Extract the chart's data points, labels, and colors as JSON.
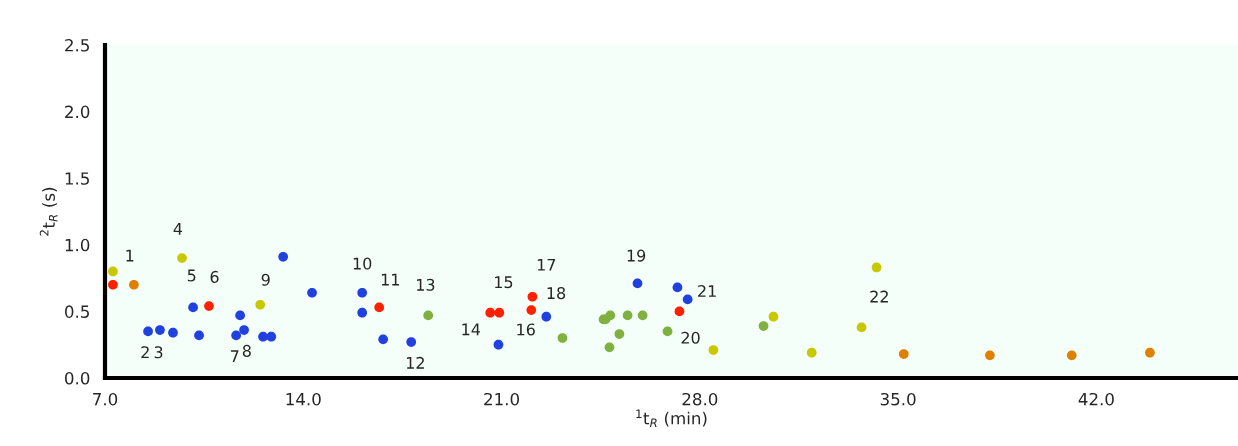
{
  "chart_data": {
    "type": "scatter",
    "xlabel": "$^{1}$t$_{R}$ (min)",
    "ylabel": "$^{2}$t$_{R}$ (s)",
    "xlim": [
      7,
      47
    ],
    "ylim": [
      0,
      2.5
    ],
    "xticks": [
      {
        "value": 7,
        "label": "7.0"
      },
      {
        "value": 14,
        "label": "14.0"
      },
      {
        "value": 21,
        "label": "21.0"
      },
      {
        "value": 28,
        "label": "28.0"
      },
      {
        "value": 35,
        "label": "35.0"
      },
      {
        "value": 42,
        "label": "42.0"
      }
    ],
    "yticks": [
      {
        "value": 0,
        "label": "0.0"
      },
      {
        "value": 0.5,
        "label": "0.5"
      },
      {
        "value": 1,
        "label": "1.0"
      },
      {
        "value": 1.5,
        "label": "1.5"
      },
      {
        "value": 2,
        "label": "2.0"
      },
      {
        "value": 2.5,
        "label": "2.5"
      }
    ],
    "grid": false,
    "legend": false,
    "marker": "circle",
    "series": [
      {
        "color": "#ff2000",
        "x": [
          7.28,
          10.67,
          16.68,
          20.6,
          20.92,
          22.09,
          22.05,
          27.28
        ],
        "values": [
          0.7,
          0.54,
          0.53,
          0.49,
          0.49,
          0.61,
          0.51,
          0.5
        ]
      },
      {
        "color": "#c8c800",
        "x": [
          7.28,
          9.72,
          12.48,
          28.48,
          30.6,
          31.95,
          33.71,
          34.24
        ],
        "values": [
          0.8,
          0.9,
          0.55,
          0.21,
          0.46,
          0.19,
          0.38,
          0.83
        ]
      },
      {
        "color": "#e08000",
        "x": [
          8.02,
          35.2,
          38.24,
          41.13,
          43.89
        ],
        "values": [
          0.7,
          0.18,
          0.17,
          0.17,
          0.19
        ]
      },
      {
        "color": "#80b040",
        "x": [
          18.41,
          23.15,
          24.6,
          24.67,
          24.84,
          24.81,
          25.16,
          25.45,
          25.98,
          26.86,
          30.25
        ],
        "values": [
          0.47,
          0.3,
          0.44,
          0.44,
          0.47,
          0.23,
          0.33,
          0.47,
          0.47,
          0.35,
          0.39
        ]
      },
      {
        "color": "#2040e0",
        "x": [
          8.52,
          8.94,
          9.4,
          10.11,
          10.32,
          11.63,
          11.77,
          11.91,
          12.58,
          12.87,
          13.29,
          14.31,
          16.08,
          16.08,
          16.82,
          17.81,
          20.89,
          22.58,
          25.8,
          27.21,
          27.57
        ],
        "values": [
          0.35,
          0.36,
          0.34,
          0.53,
          0.32,
          0.32,
          0.47,
          0.36,
          0.31,
          0.31,
          0.91,
          0.64,
          0.49,
          0.64,
          0.29,
          0.27,
          0.25,
          0.46,
          0.71,
          0.68,
          0.59
        ]
      }
    ],
    "annotations": [
      {
        "text": "1",
        "x": 8.02,
        "y": 0.7
      },
      {
        "text": "2",
        "x": 8.52,
        "y": 0.35
      },
      {
        "text": "3",
        "x": 8.94,
        "y": 0.36
      },
      {
        "text": "4",
        "x": 9.72,
        "y": 0.9
      },
      {
        "text": "5",
        "x": 10.11,
        "y": 0.53
      },
      {
        "text": "6",
        "x": 10.67,
        "y": 0.54
      },
      {
        "text": "7",
        "x": 11.63,
        "y": 0.32
      },
      {
        "text": "8",
        "x": 11.91,
        "y": 0.36
      },
      {
        "text": "9",
        "x": 12.48,
        "y": 0.55
      },
      {
        "text": "10",
        "x": 16.08,
        "y": 0.64
      },
      {
        "text": "11",
        "x": 16.68,
        "y": 0.53
      },
      {
        "text": "12",
        "x": 17.81,
        "y": 0.27
      },
      {
        "text": "13",
        "x": 18.41,
        "y": 0.47
      },
      {
        "text": "14",
        "x": 20.6,
        "y": 0.49
      },
      {
        "text": "15",
        "x": 20.92,
        "y": 0.49
      },
      {
        "text": "16",
        "x": 22.05,
        "y": 0.51
      },
      {
        "text": "17",
        "x": 22.09,
        "y": 0.61
      },
      {
        "text": "18",
        "x": 22.58,
        "y": 0.46
      },
      {
        "text": "19",
        "x": 25.8,
        "y": 0.71
      },
      {
        "text": "20",
        "x": 27.28,
        "y": 0.5
      },
      {
        "text": "21",
        "x": 27.57,
        "y": 0.59
      },
      {
        "text": "22",
        "x": 34.24,
        "y": 0.83
      }
    ]
  }
}
